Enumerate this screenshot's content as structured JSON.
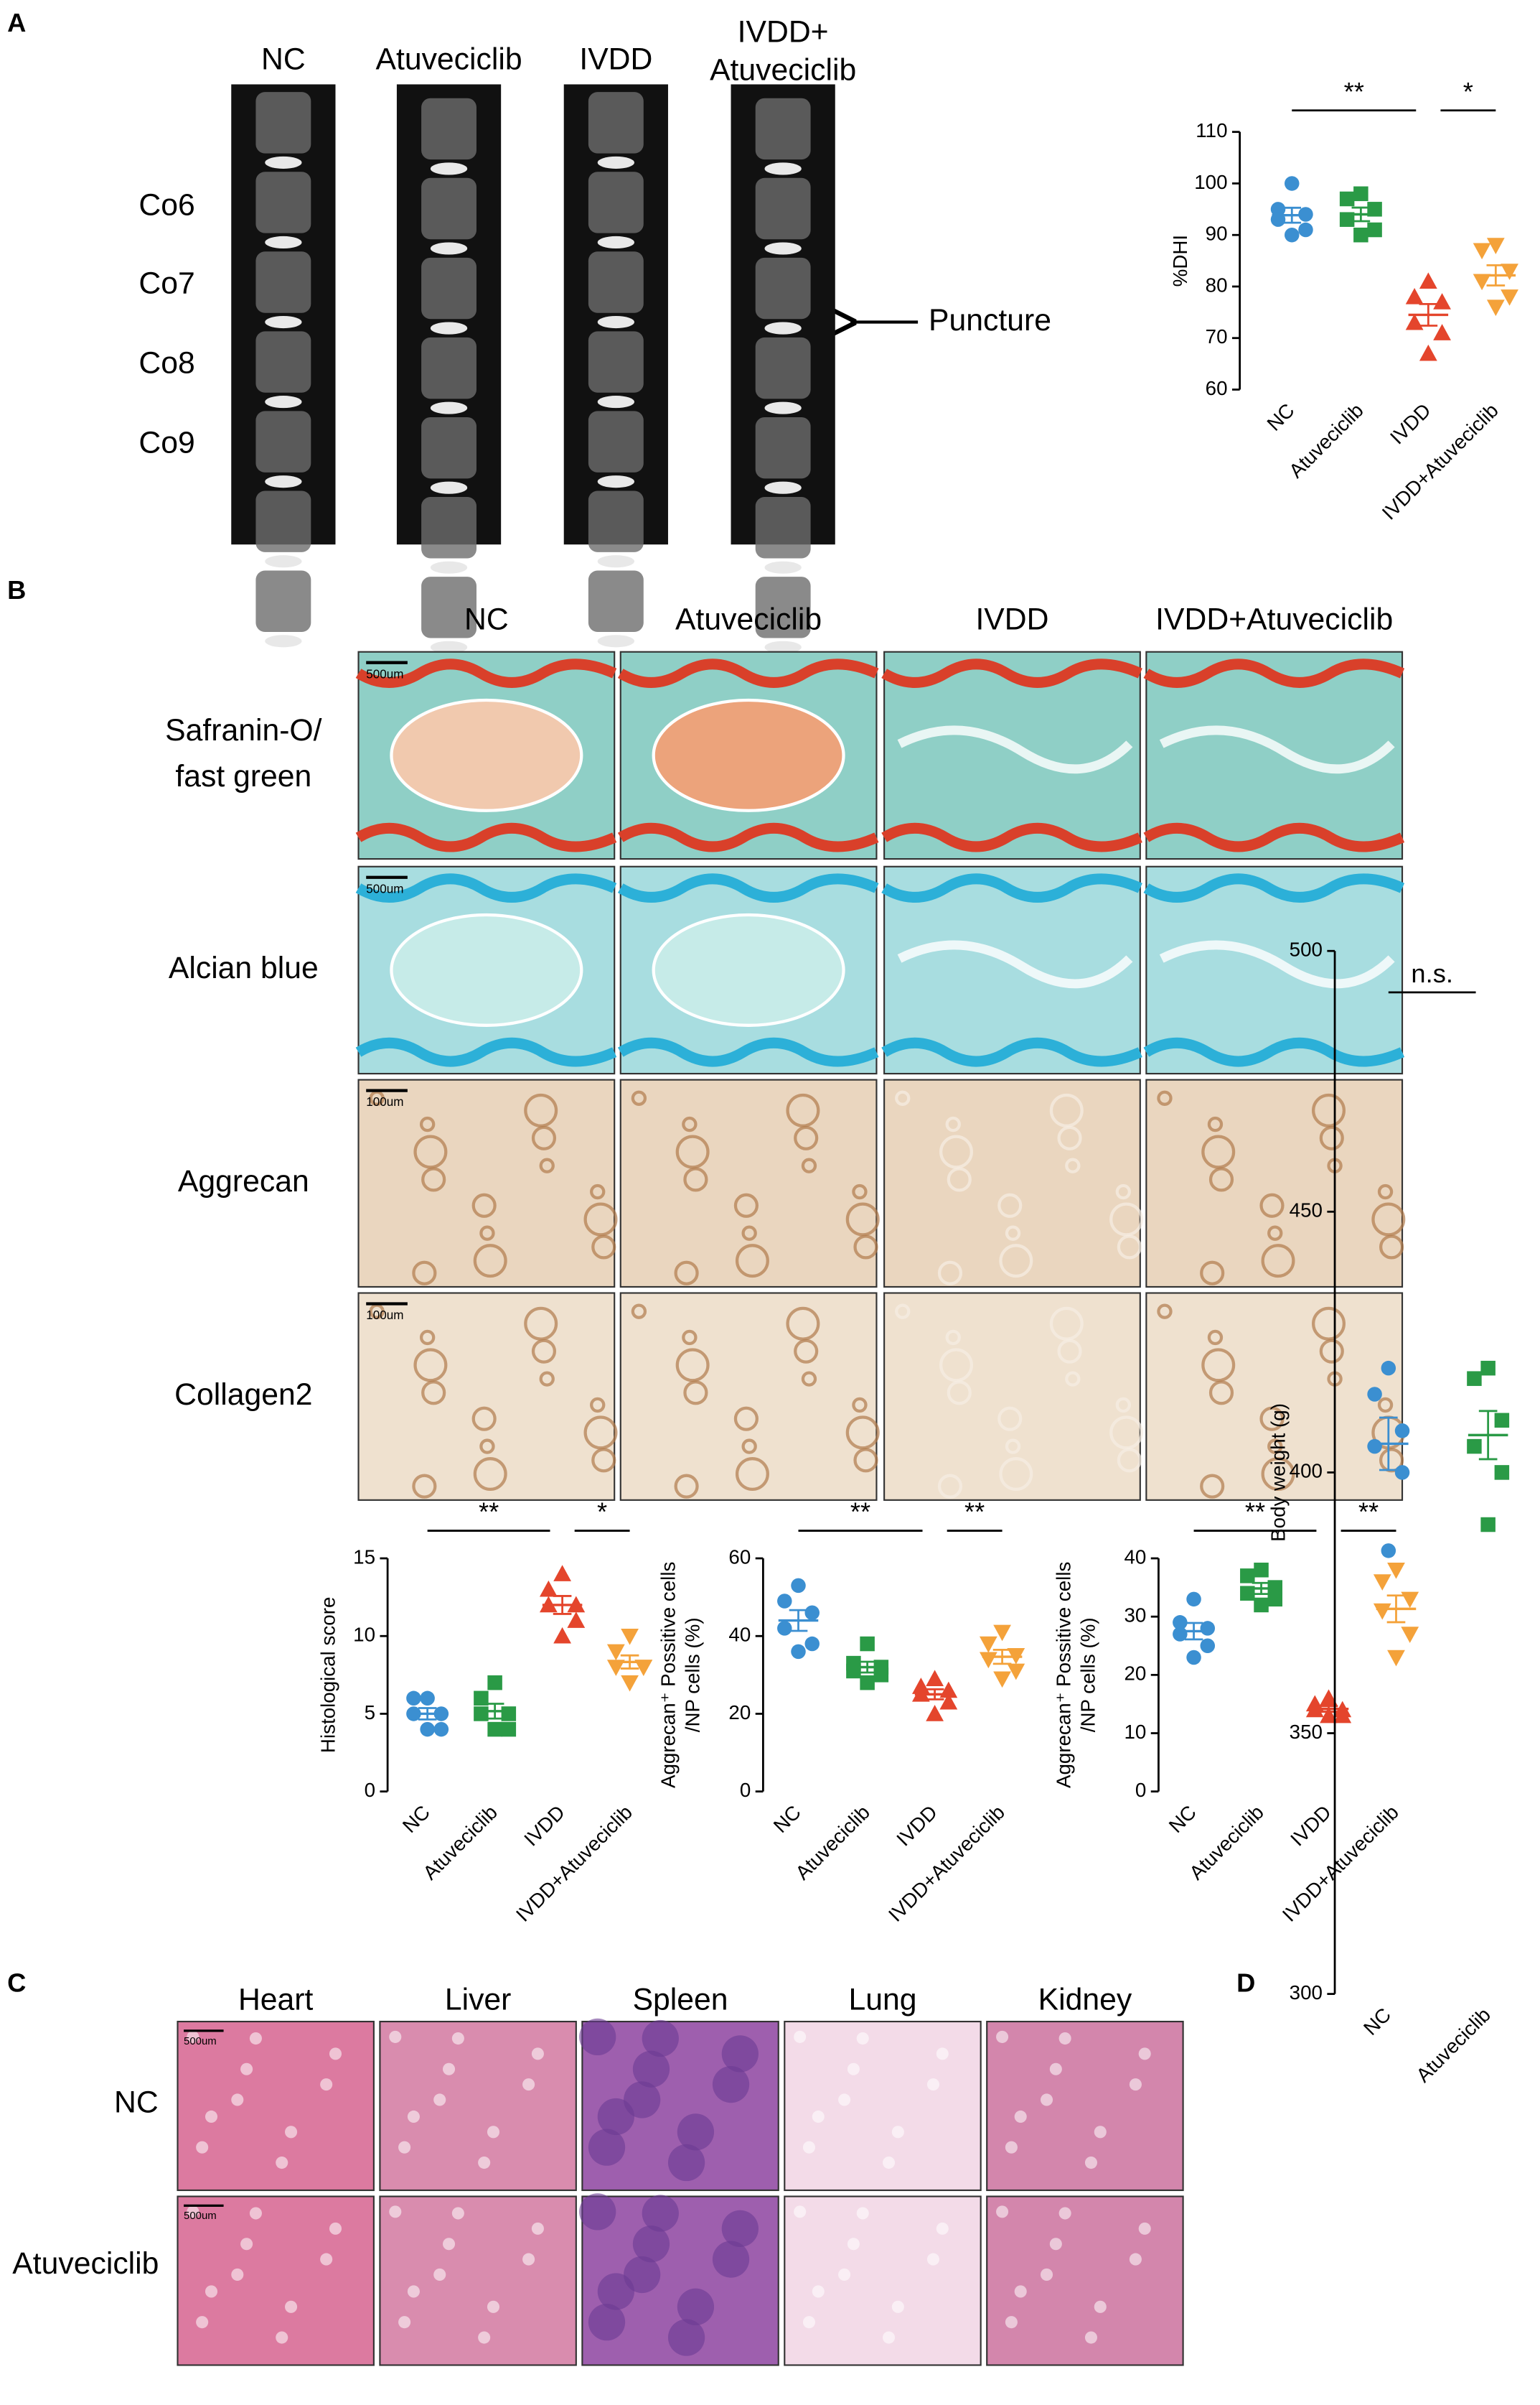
{
  "chart_data": [
    {
      "type": "dot",
      "ylabel": [
        "%DHI"
      ],
      "ylim": [
        60,
        110
      ],
      "yticks": [
        60,
        70,
        80,
        90,
        100,
        110
      ],
      "annotations": [
        "**",
        "*"
      ],
      "series": [
        {
          "name": "NC",
          "color": "#3b8fd1",
          "marker": "circle",
          "values": [
            100,
            95,
            94,
            93,
            91,
            90
          ]
        },
        {
          "name": "Atuveciclib",
          "color": "#2a9a46",
          "marker": "square",
          "values": [
            98,
            97,
            95,
            93,
            91,
            90
          ]
        },
        {
          "name": "IVDD",
          "color": "#e4452c",
          "marker": "triangle",
          "values": [
            81,
            78,
            77,
            73,
            71,
            67
          ]
        },
        {
          "name": "IVDD+Atuveciclib",
          "color": "#f4a23a",
          "marker": "triangle-down",
          "values": [
            88,
            87,
            83,
            81,
            78,
            76
          ]
        }
      ]
    },
    {
      "type": "dot",
      "ylabel": [
        "Histological score"
      ],
      "ylim": [
        0,
        15
      ],
      "yticks": [
        0,
        5,
        10,
        15
      ],
      "annotations": [
        "**",
        "*"
      ],
      "series": [
        {
          "name": "NC",
          "color": "#3b8fd1",
          "marker": "circle",
          "values": [
            6,
            6,
            5,
            5,
            4,
            4
          ]
        },
        {
          "name": "Atuveciclib",
          "color": "#2a9a46",
          "marker": "square",
          "values": [
            7,
            6,
            5,
            5,
            4,
            4
          ]
        },
        {
          "name": "IVDD",
          "color": "#e4452c",
          "marker": "triangle",
          "values": [
            14,
            13,
            12,
            12,
            11,
            10
          ]
        },
        {
          "name": "IVDD+Atuveciclib",
          "color": "#f4a23a",
          "marker": "triangle-down",
          "values": [
            10,
            9,
            8,
            8,
            8,
            7
          ]
        }
      ]
    },
    {
      "type": "dot",
      "ylabel": [
        "Aggrecan⁺ Possitive cells",
        "/NP cells (%)"
      ],
      "ylim": [
        0,
        60
      ],
      "yticks": [
        0,
        20,
        40,
        60
      ],
      "annotations": [
        "**",
        "**"
      ],
      "series": [
        {
          "name": "NC",
          "color": "#3b8fd1",
          "marker": "circle",
          "values": [
            53,
            49,
            46,
            42,
            38,
            36
          ]
        },
        {
          "name": "Atuveciclib",
          "color": "#2a9a46",
          "marker": "square",
          "values": [
            38,
            33,
            32,
            31,
            30,
            28
          ]
        },
        {
          "name": "IVDD",
          "color": "#e4452c",
          "marker": "triangle",
          "values": [
            29,
            27,
            26,
            25,
            23,
            20
          ]
        },
        {
          "name": "IVDD+Atuveciclib",
          "color": "#f4a23a",
          "marker": "triangle-down",
          "values": [
            41,
            38,
            35,
            34,
            31,
            29
          ]
        }
      ]
    },
    {
      "type": "dot",
      "ylabel": [
        "Aggrecan⁺ Possitive cells",
        "/NP cells (%)"
      ],
      "ylim": [
        0,
        40
      ],
      "yticks": [
        0,
        10,
        20,
        30,
        40
      ],
      "annotations": [
        "**",
        "**"
      ],
      "series": [
        {
          "name": "NC",
          "color": "#3b8fd1",
          "marker": "circle",
          "values": [
            33,
            29,
            28,
            27,
            25,
            23
          ]
        },
        {
          "name": "Atuveciclib",
          "color": "#2a9a46",
          "marker": "square",
          "values": [
            38,
            37,
            35,
            34,
            33,
            32
          ]
        },
        {
          "name": "IVDD",
          "color": "#e4452c",
          "marker": "triangle",
          "values": [
            16,
            15,
            14,
            14,
            13,
            13
          ]
        },
        {
          "name": "IVDD+Atuveciclib",
          "color": "#f4a23a",
          "marker": "triangle-down",
          "values": [
            38,
            36,
            33,
            31,
            27,
            23
          ]
        }
      ]
    },
    {
      "type": "dot",
      "ylabel": [
        "Body weight (g)"
      ],
      "ylim": [
        300,
        500
      ],
      "yticks": [
        300,
        350,
        400,
        450,
        500
      ],
      "annotations": [
        "n.s."
      ],
      "series": [
        {
          "name": "NC",
          "color": "#3b8fd1",
          "marker": "circle",
          "values": [
            420,
            415,
            408,
            405,
            400,
            385
          ]
        },
        {
          "name": "Atuveciclib",
          "color": "#2a9a46",
          "marker": "square",
          "values": [
            420,
            418,
            410,
            405,
            400,
            390
          ]
        }
      ]
    }
  ],
  "figure": {
    "panel_labels": [
      "A",
      "B",
      "C",
      "D"
    ],
    "mri": {
      "columns": [
        [
          "NC"
        ],
        [
          "Atuveciclib"
        ],
        [
          "IVDD"
        ],
        [
          "IVDD+",
          "Atuveciclib"
        ]
      ],
      "levels": [
        "Co6",
        "Co7",
        "Co8",
        "Co9"
      ],
      "arrow_label": "Puncture"
    },
    "histology": {
      "columns": [
        "NC",
        "Atuveciclib",
        "IVDD",
        "IVDD+Atuveciclib"
      ],
      "rows": [
        [
          "Safranin-O/",
          "fast green"
        ],
        [
          "Alcian blue"
        ],
        [
          "Aggrecan"
        ],
        [
          "Collagen2"
        ]
      ],
      "scale_labels": [
        "500um",
        "500um",
        "100um",
        "100um"
      ]
    },
    "organs": {
      "columns": [
        "Heart",
        "Liver",
        "Spleen",
        "Lung",
        "Kidney"
      ],
      "rows": [
        "NC",
        "Atuveciclib"
      ],
      "scale_labels": [
        "500um",
        "500um"
      ]
    }
  }
}
